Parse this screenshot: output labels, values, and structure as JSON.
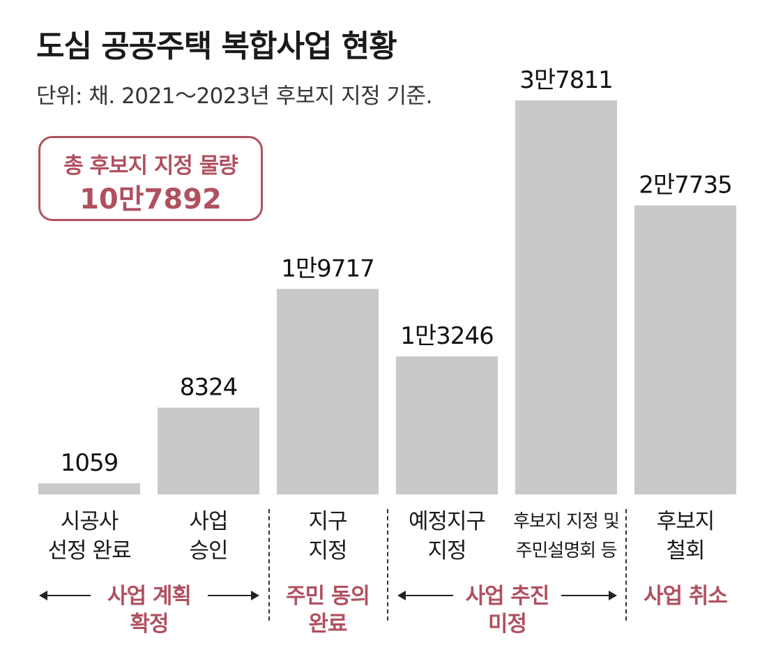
{
  "header": {
    "title": "도심 공공주택 복합사업 현황",
    "subtitle": "단위: 채.  2021～2023년 후보지 지정 기준."
  },
  "total": {
    "label": "총 후보지 지정 물량",
    "value": "10만7892"
  },
  "chart_data": {
    "type": "bar",
    "categories": [
      "시공사\n선정 완료",
      "사업\n승인",
      "지구\n지정",
      "예정지구\n지정",
      "후보지 지정 및\n주민설명회 등",
      "후보지\n철회"
    ],
    "values": [
      1059,
      8324,
      19717,
      13246,
      37811,
      27735
    ],
    "value_labels": [
      "1059",
      "8324",
      "1만9717",
      "1만3246",
      "3만7811",
      "2만7735"
    ],
    "bar_color": "#c8c9cb",
    "title": "도심 공공주택 복합사업 현황"
  },
  "stages": [
    {
      "label": "사업 계획\n확정"
    },
    {
      "label": "주민 동의\n완료"
    },
    {
      "label": "사업 추진\n미정"
    },
    {
      "label": "사업 취소"
    }
  ],
  "colors": {
    "accent": "#b0505f",
    "bar": "#c8c9cb"
  }
}
